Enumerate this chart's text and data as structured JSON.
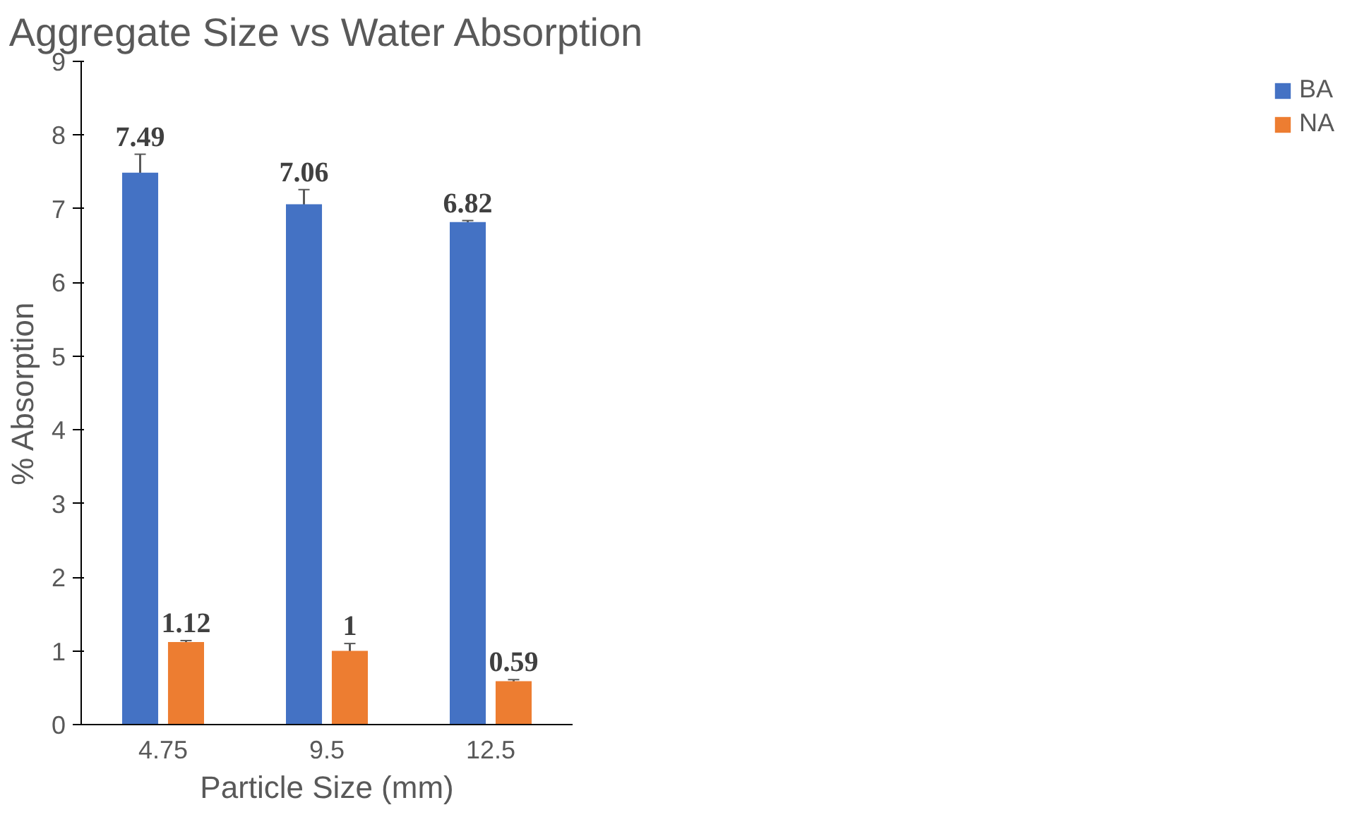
{
  "chart_data": {
    "type": "bar",
    "title": "Aggregate Size vs Water Absorption",
    "xlabel": "Particle Size (mm)",
    "ylabel": "% Absorption",
    "categories": [
      "4.75",
      "9.5",
      "12.5"
    ],
    "series": [
      {
        "name": "BA",
        "color": "#4472c4",
        "values": [
          7.49,
          7.06,
          6.82
        ],
        "errors": [
          0.25,
          0.2,
          0.02
        ]
      },
      {
        "name": "NA",
        "color": "#ed7d31",
        "values": [
          1.12,
          1,
          0.59
        ],
        "errors": [
          0.02,
          0.1,
          0.02
        ]
      }
    ],
    "ylim": [
      0,
      9
    ],
    "yticks": [
      0,
      1,
      2,
      3,
      4,
      5,
      6,
      7,
      8,
      9
    ],
    "grid": false,
    "legend": "right",
    "data_labels": true
  }
}
